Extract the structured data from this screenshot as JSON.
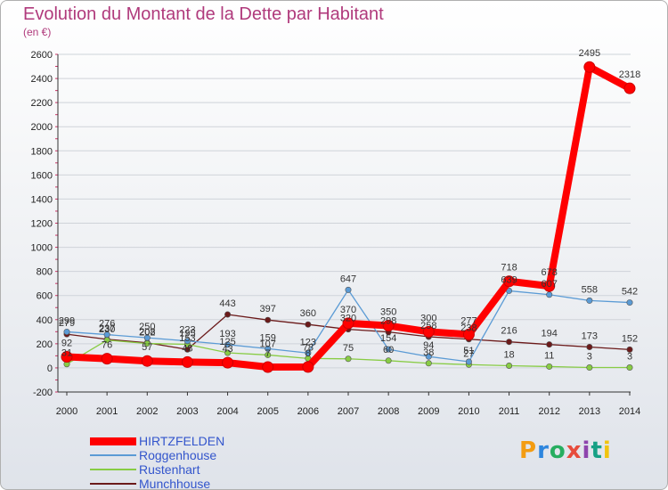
{
  "title": "Evolution du Montant de la Dette par Habitant",
  "subtitle": "(en €)",
  "logo": {
    "text": "Proxiti",
    "colors": [
      "#f39c12",
      "#2e86de",
      "#27ae60",
      "#e74c3c",
      "#8e44ad",
      "#16a085",
      "#f1c40f"
    ]
  },
  "chart_data": {
    "type": "line",
    "title": "Evolution du Montant de la Dette par Habitant",
    "ylabel": "(en €)",
    "xlabel": "",
    "ylim": [
      -200,
      2600
    ],
    "yticks": [
      -200,
      0,
      200,
      400,
      600,
      800,
      1000,
      1200,
      1400,
      1600,
      1800,
      2000,
      2200,
      2400,
      2600
    ],
    "categories": [
      "2000",
      "2001",
      "2002",
      "2003",
      "2004",
      "2005",
      "2006",
      "2007",
      "2008",
      "2009",
      "2010",
      "2011",
      "2012",
      "2013",
      "2014"
    ],
    "series": [
      {
        "name": "HIRTZFELDEN",
        "color": "#ff0000",
        "values": [
          92,
          76,
          57,
          48,
          43,
          7,
          8,
          370,
          350,
          300,
          277,
          718,
          678,
          2495,
          2318
        ]
      },
      {
        "name": "Roggenhouse",
        "color": "#5b9bd5",
        "values": [
          299,
          276,
          250,
          223,
          193,
          159,
          123,
          647,
          154,
          94,
          51,
          639,
          607,
          558,
          542
        ]
      },
      {
        "name": "Rustenhart",
        "color": "#88cc44",
        "values": [
          31,
          230,
          202,
          195,
          125,
          107,
          78,
          75,
          60,
          38,
          27,
          18,
          11,
          3,
          3
        ]
      },
      {
        "name": "Munchhouse",
        "color": "#6b1a1a",
        "values": [
          279,
          237,
          208,
          153,
          443,
          397,
          360,
          320,
          298,
          258,
          238,
          216,
          194,
          173,
          152
        ]
      }
    ]
  }
}
